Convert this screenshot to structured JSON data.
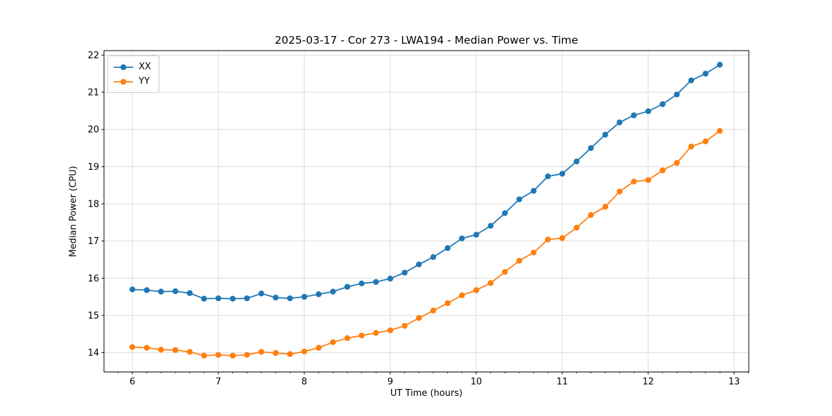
{
  "chart_data": {
    "type": "line",
    "title": "2025-03-17 - Cor 273 - LWA194 - Median Power vs. Time",
    "xlabel": "UT Time (hours)",
    "ylabel": "Median Power (CPU)",
    "xlim": [
      5.67,
      13.17
    ],
    "ylim": [
      13.48,
      22.12
    ],
    "xticks": [
      6,
      7,
      8,
      9,
      10,
      11,
      12,
      13
    ],
    "yticks": [
      14,
      15,
      16,
      17,
      18,
      19,
      20,
      21,
      22
    ],
    "x_minor_step_hours": 0.1667,
    "grid": true,
    "legend_position": "upper-left",
    "x": [
      6.0,
      6.167,
      6.333,
      6.5,
      6.667,
      6.833,
      7.0,
      7.167,
      7.333,
      7.5,
      7.667,
      7.833,
      8.0,
      8.167,
      8.333,
      8.5,
      8.667,
      8.833,
      9.0,
      9.167,
      9.333,
      9.5,
      9.667,
      9.833,
      10.0,
      10.167,
      10.333,
      10.5,
      10.667,
      10.833,
      11.0,
      11.167,
      11.333,
      11.5,
      11.667,
      11.833,
      12.0,
      12.167,
      12.333,
      12.5,
      12.667,
      12.833
    ],
    "series": [
      {
        "name": "XX",
        "color": "#1f77b4",
        "values": [
          15.7,
          15.68,
          15.64,
          15.65,
          15.6,
          15.45,
          15.46,
          15.45,
          15.46,
          15.59,
          15.48,
          15.46,
          15.5,
          15.57,
          15.64,
          15.77,
          15.86,
          15.9,
          15.99,
          16.15,
          16.37,
          16.57,
          16.81,
          17.07,
          17.17,
          17.41,
          17.75,
          18.12,
          18.35,
          18.74,
          18.81,
          19.14,
          19.5,
          19.86,
          20.19,
          20.38,
          20.49,
          20.68,
          20.94,
          21.32,
          21.5,
          21.74
        ]
      },
      {
        "name": "YY",
        "color": "#ff7f0e",
        "values": [
          14.15,
          14.13,
          14.08,
          14.07,
          14.02,
          13.92,
          13.94,
          13.92,
          13.94,
          14.02,
          13.99,
          13.96,
          14.03,
          14.13,
          14.28,
          14.39,
          14.46,
          14.53,
          14.6,
          14.72,
          14.93,
          15.13,
          15.33,
          15.54,
          15.68,
          15.87,
          16.17,
          16.47,
          16.69,
          17.04,
          17.08,
          17.36,
          17.7,
          17.92,
          18.33,
          18.6,
          18.64,
          18.9,
          19.1,
          19.54,
          19.68,
          19.96
        ]
      }
    ],
    "style": {
      "grid_color": "#dcdcdc",
      "spine_color": "#000000",
      "background": "#ffffff"
    }
  }
}
